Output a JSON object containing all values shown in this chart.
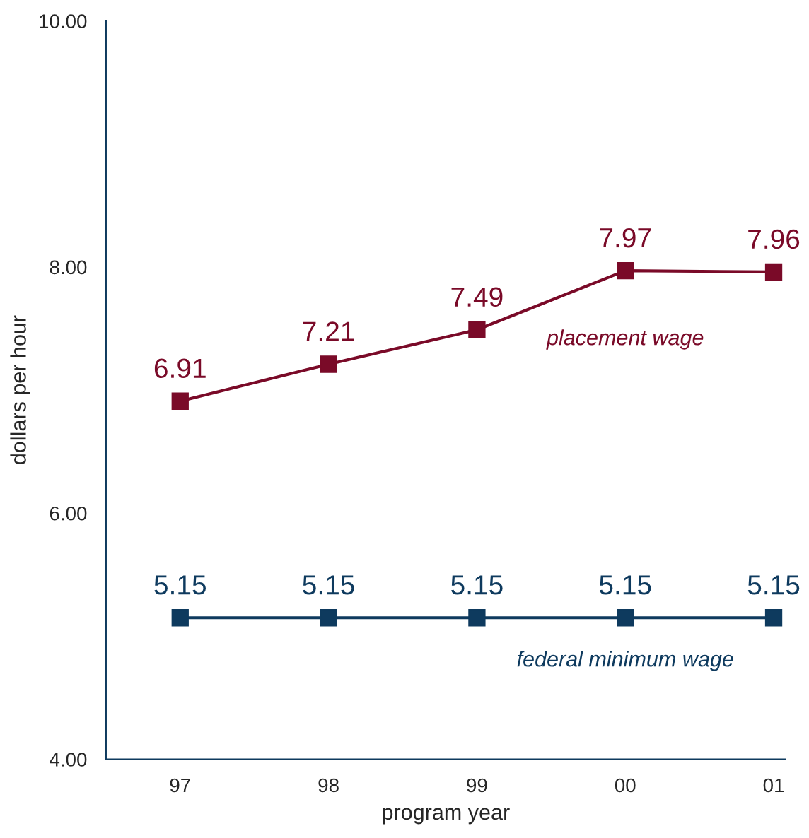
{
  "chart_data": {
    "type": "line",
    "xlabel": "program year",
    "ylabel": "dollars per hour",
    "categories": [
      "97",
      "98",
      "99",
      "00",
      "01"
    ],
    "series": [
      {
        "name": "placement wage",
        "color": "#7a0a28",
        "values": [
          6.91,
          7.21,
          7.49,
          7.97,
          7.96
        ]
      },
      {
        "name": "federal minimum wage",
        "color": "#0e3a5e",
        "values": [
          5.15,
          5.15,
          5.15,
          5.15,
          5.15
        ]
      }
    ],
    "ylim": [
      4,
      10
    ],
    "yticks": [
      {
        "value": 4,
        "label": "4.00"
      },
      {
        "value": 6,
        "label": "6.00"
      },
      {
        "value": 8,
        "label": "8.00"
      },
      {
        "value": 10,
        "label": "10.00"
      }
    ],
    "data_labels": true,
    "marker": "square",
    "line_style": "solid",
    "grid": false,
    "legend": false
  }
}
